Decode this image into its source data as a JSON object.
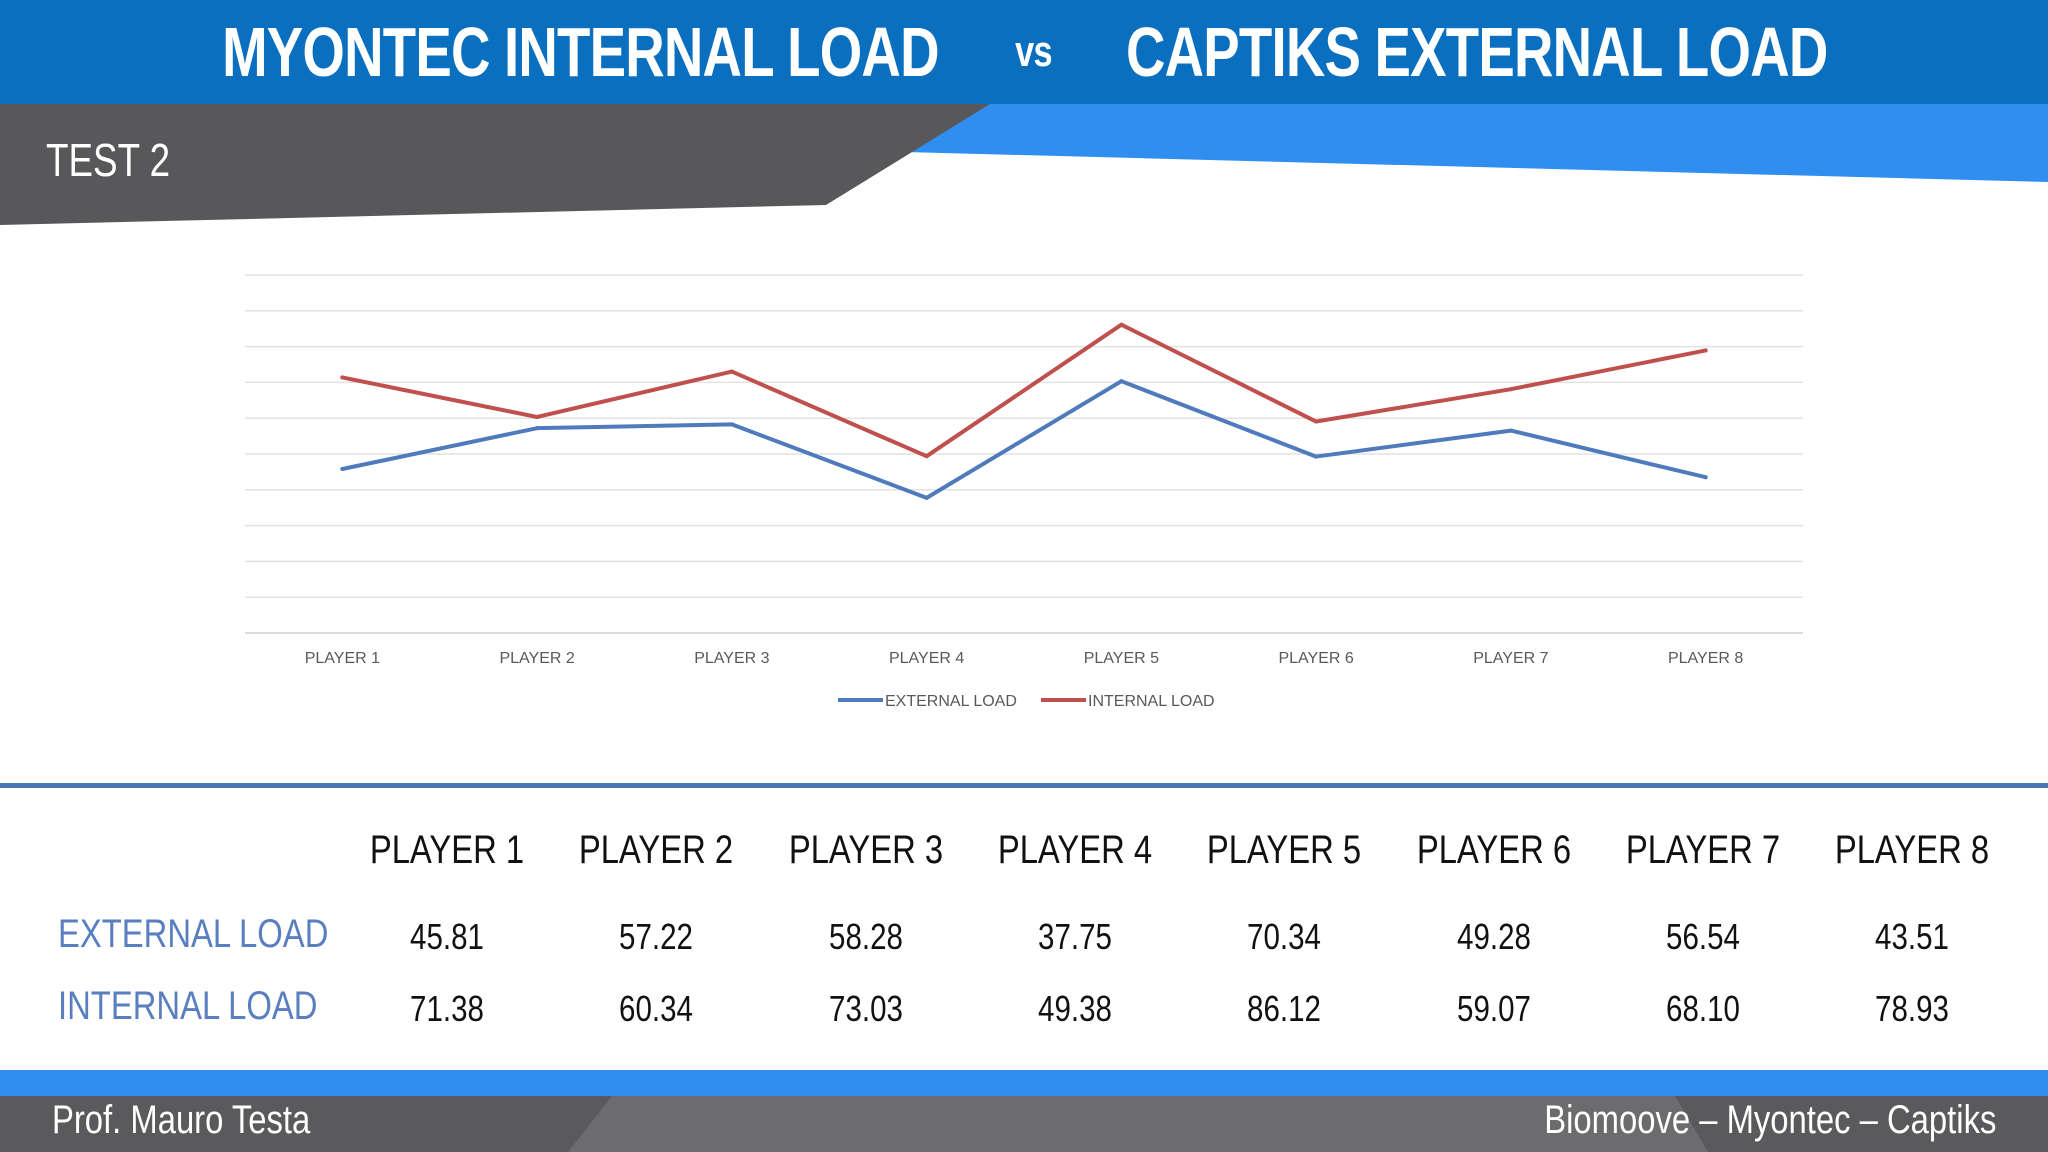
{
  "header": {
    "title_part1": "MYONTEC INTERNAL LOAD",
    "title_vs": "vs",
    "title_part2": "CAPTIKS EXTERNAL LOAD"
  },
  "section_label": "TEST 2",
  "colors": {
    "header_blue": "#0b6fc0",
    "accent_blue": "#2f8ef0",
    "dark_gray": "#58585a",
    "external_load": "#4f7bbd",
    "internal_load": "#c0504d"
  },
  "chart_data": {
    "type": "line",
    "categories": [
      "PLAYER 1",
      "PLAYER 2",
      "PLAYER 3",
      "PLAYER 4",
      "PLAYER 5",
      "PLAYER 6",
      "PLAYER 7",
      "PLAYER 8"
    ],
    "series": [
      {
        "name": "EXTERNAL LOAD",
        "values": [
          45.81,
          57.22,
          58.28,
          37.75,
          70.34,
          49.28,
          56.54,
          43.51
        ]
      },
      {
        "name": "INTERNAL LOAD",
        "values": [
          71.38,
          60.34,
          73.03,
          49.38,
          86.12,
          59.07,
          68.1,
          78.93
        ]
      }
    ],
    "ylim": [
      0,
      100
    ],
    "grid": true,
    "y_tick_labels_shown": false,
    "legend_position": "bottom"
  },
  "table": {
    "headers": [
      "PLAYER 1",
      "PLAYER 2",
      "PLAYER 3",
      "PLAYER 4",
      "PLAYER 5",
      "PLAYER 6",
      "PLAYER 7",
      "PLAYER 8"
    ],
    "rows": [
      {
        "label": "EXTERNAL LOAD",
        "values": [
          "45.81",
          "57.22",
          "58.28",
          "37.75",
          "70.34",
          "49.28",
          "56.54",
          "43.51"
        ]
      },
      {
        "label": "INTERNAL LOAD",
        "values": [
          "71.38",
          "60.34",
          "73.03",
          "49.38",
          "86.12",
          "59.07",
          "68.10",
          "78.93"
        ]
      }
    ]
  },
  "footer": {
    "left": "Prof. Mauro Testa",
    "right": "Biomoove – Myontec – Captiks"
  }
}
